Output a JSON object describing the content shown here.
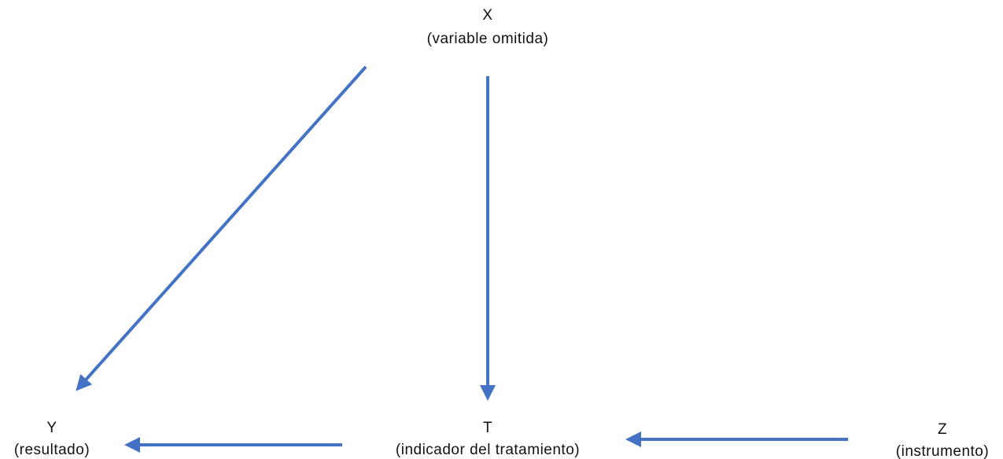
{
  "nodes": [
    {
      "label": "X",
      "description": "(variable omitida)"
    },
    {
      "label": "Y",
      "description": "(resultado)"
    },
    {
      "label": "T",
      "description": "(indicador del tratamiento)"
    },
    {
      "label": "Z",
      "description": "(instrumento)"
    }
  ]
}
